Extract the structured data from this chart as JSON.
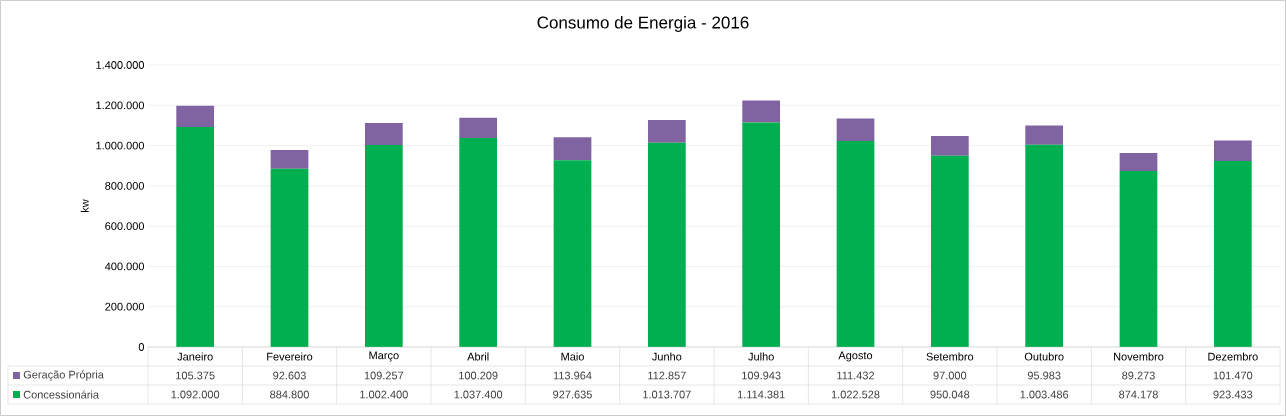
{
  "chart_data": {
    "type": "bar",
    "title": "Consumo de Energia - 2016",
    "ylabel": "kw",
    "categories": [
      "Janeiro",
      "Fevereiro",
      "Março",
      "Abril",
      "Maio",
      "Junho",
      "Julho",
      "Agosto",
      "Setembro",
      "Outubro",
      "Novembro",
      "Dezembro"
    ],
    "series": [
      {
        "name": "Concessionária",
        "color": "#00b050",
        "values": [
          1092000,
          884800,
          1002400,
          1037400,
          927635,
          1013707,
          1114381,
          1022528,
          950048,
          1003486,
          874178,
          923433
        ],
        "value_labels": [
          "1.092.000",
          "884.800",
          "1.002.400",
          "1.037.400",
          "927.635",
          "1.013.707",
          "1.114.381",
          "1.022.528",
          "950.048",
          "1.003.486",
          "874.178",
          "923.433"
        ]
      },
      {
        "name": "Geração Própria",
        "color": "#8064a2",
        "values": [
          105375,
          92603,
          109257,
          100209,
          113964,
          112857,
          109943,
          111432,
          97000,
          95983,
          89273,
          101470
        ],
        "value_labels": [
          "105.375",
          "92.603",
          "109.257",
          "100.209",
          "113.964",
          "112.857",
          "109.943",
          "111.432",
          "97.000",
          "95.983",
          "89.273",
          "101.470"
        ]
      }
    ],
    "stacked": true,
    "ylim": [
      0,
      1400000
    ],
    "yticks": [
      0,
      {
        "value": 200000,
        "label": "200.000"
      },
      {
        "value": 400000,
        "label": "400.000"
      },
      {
        "value": 600000,
        "label": "600.000"
      },
      {
        "value": 800000,
        "label": "800.000"
      },
      {
        "value": 1000000,
        "label": "1.000.000"
      },
      {
        "value": 1200000,
        "label": "1.200.000"
      },
      {
        "value": 1400000,
        "label": "1.400.000"
      }
    ],
    "grid": "y",
    "legend": "bottom"
  }
}
